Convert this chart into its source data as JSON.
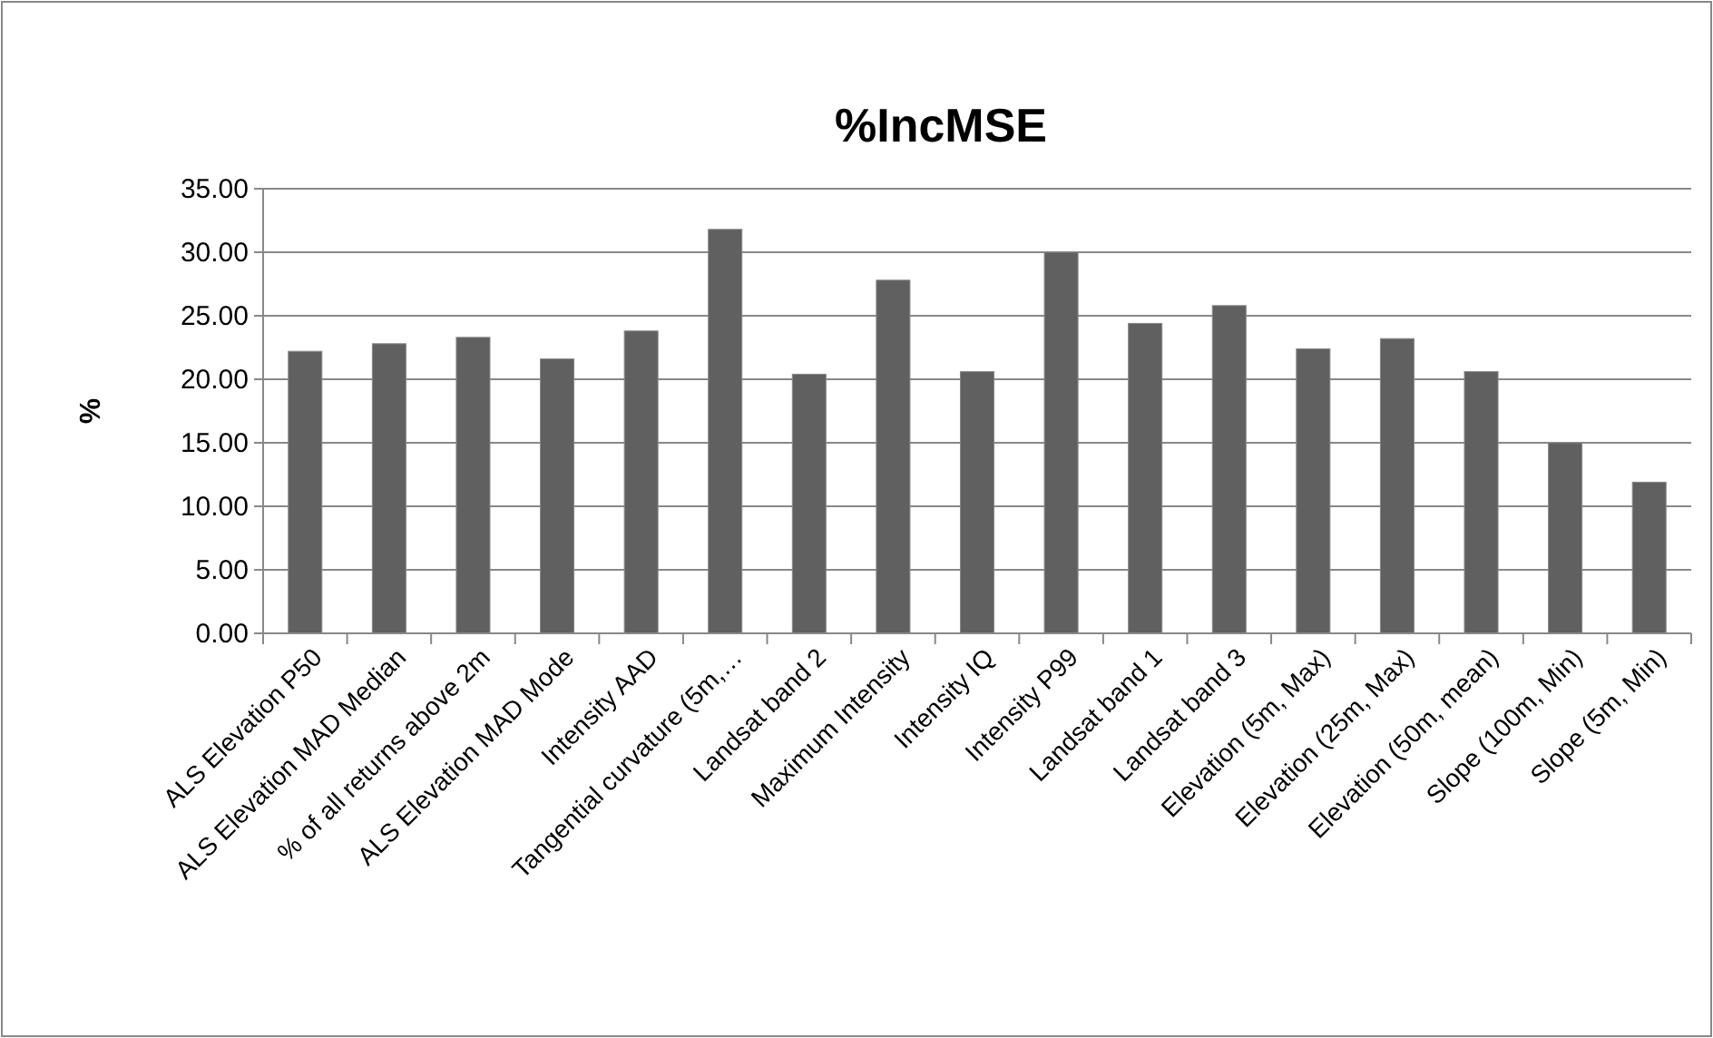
{
  "chart_data": {
    "type": "bar",
    "title": "%IncMSE",
    "ylabel": "%",
    "categories": [
      "ALS Elevation P50",
      "ALS Elevation MAD Median",
      "% of all returns above 2m",
      "ALS Elevation MAD Mode",
      "Intensity AAD",
      "Tangential curvature (5m,…",
      "Landsat band 2",
      "Maximum Intensity",
      "Intensity IQ",
      "Intensity P99",
      "Landsat band 1",
      "Landsat band 3",
      "Elevation (5m, Max)",
      "Elevation (25m, Max)",
      "Elevation (50m, mean)",
      "Slope (100m, Min)",
      "Slope (5m, Min)"
    ],
    "values": [
      22.2,
      22.8,
      23.3,
      21.6,
      23.8,
      31.8,
      20.4,
      27.8,
      20.6,
      30.0,
      24.4,
      25.8,
      22.4,
      23.2,
      20.6,
      15.0,
      11.9
    ],
    "color": "#606060",
    "ylim": [
      0,
      35
    ],
    "yticks": [
      {
        "value": 0,
        "label": "0.00"
      },
      {
        "value": 5,
        "label": "5.00"
      },
      {
        "value": 10,
        "label": "10.00"
      },
      {
        "value": 15,
        "label": "15.00"
      },
      {
        "value": 20,
        "label": "20.00"
      },
      {
        "value": 25,
        "label": "25.00"
      },
      {
        "value": 30,
        "label": "30.00"
      },
      {
        "value": 35,
        "label": "35.00"
      }
    ],
    "grid": "y"
  }
}
